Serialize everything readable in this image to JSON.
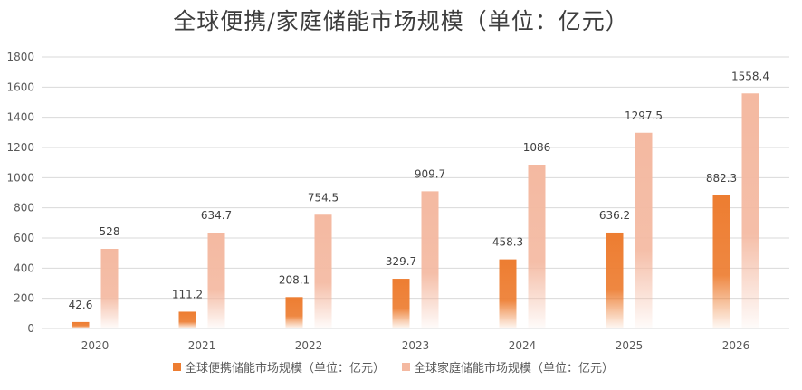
{
  "chart_data": {
    "type": "bar",
    "title": "全球便携/家庭储能市场规模（单位：亿元）",
    "xlabel": "",
    "ylabel": "",
    "categories": [
      "2020",
      "2021",
      "2022",
      "2023",
      "2024",
      "2025",
      "2026"
    ],
    "series": [
      {
        "name": "全球便携储能市场规模（单位：亿元）",
        "values": [
          42.6,
          111.2,
          208.1,
          329.7,
          458.3,
          636.2,
          882.3
        ],
        "data_labels": [
          "42.6",
          "111.2",
          "208.1",
          "329.7",
          "458.3",
          "636.2",
          "882.3"
        ],
        "color": "#ED7D31"
      },
      {
        "name": "全球家庭储能市场规模（单位：亿元）",
        "values": [
          528,
          634.7,
          754.5,
          909.7,
          1086,
          1297.5,
          1558.4
        ],
        "data_labels": [
          "528",
          "634.7",
          "754.5",
          "909.7",
          "1086",
          "1297.5",
          "1558.4"
        ],
        "color": "#F4B9A1"
      }
    ],
    "ylim": [
      0,
      1800
    ],
    "yticks": [
      "0",
      "200",
      "400",
      "600",
      "800",
      "1000",
      "1200",
      "1400",
      "1600",
      "1800"
    ],
    "grid": true,
    "legend_position": "bottom",
    "gridline_color": "#d9d9d9",
    "fill_style": "gradient-fade-to-white-at-base"
  }
}
